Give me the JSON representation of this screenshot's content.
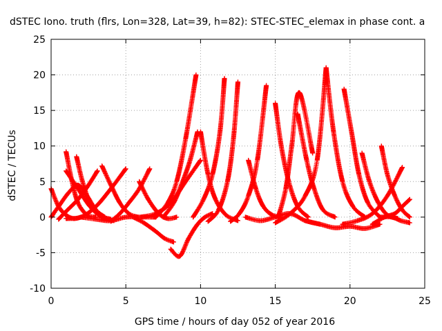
{
  "chart_data": {
    "type": "scatter",
    "title": "dSTEC Iono. truth (flrs, Lon=328, Lat=39, h=82): STEC-STEC_elemax in phase cont. a",
    "xlabel": "GPS time / hours of day 052 of year 2016",
    "ylabel": "dSTEC  / TECUs",
    "xlim": [
      0,
      25
    ],
    "ylim": [
      -10,
      25
    ],
    "xticks": [
      0,
      5,
      10,
      15,
      20,
      25
    ],
    "yticks": [
      -10,
      -5,
      0,
      5,
      10,
      15,
      20,
      25
    ],
    "grid": true,
    "marker": "+",
    "color": "#ff0000",
    "series": [
      {
        "x": [
          0.0,
          0.5,
          1.0,
          1.5,
          2.0
        ],
        "y": [
          4.0,
          1.5,
          0.3,
          -0.2,
          0.0
        ]
      },
      {
        "x": [
          0.0,
          0.5,
          1.2,
          1.8,
          2.4,
          3.0,
          3.6
        ],
        "y": [
          0.0,
          1.5,
          3.5,
          4.5,
          3.0,
          1.0,
          0.0
        ]
      },
      {
        "x": [
          1.0,
          1.4,
          1.8,
          2.4,
          3.0
        ],
        "y": [
          9.2,
          5.0,
          2.0,
          0.3,
          0.0
        ]
      },
      {
        "x": [
          1.7,
          2.1,
          2.6,
          3.2,
          4.0
        ],
        "y": [
          8.5,
          5.0,
          2.0,
          0.3,
          -0.3
        ]
      },
      {
        "x": [
          0.5,
          1.0,
          1.8,
          2.5,
          3.1
        ],
        "y": [
          -0.3,
          0.8,
          2.5,
          4.5,
          6.5
        ]
      },
      {
        "x": [
          1.0,
          1.8,
          2.6,
          3.4,
          4.2
        ],
        "y": [
          6.5,
          4.0,
          1.5,
          0.0,
          -0.5
        ]
      },
      {
        "x": [
          1.0,
          2.0,
          3.0,
          4.0,
          5.0
        ],
        "y": [
          -0.2,
          0.0,
          1.5,
          4.0,
          6.8
        ]
      },
      {
        "x": [
          3.4,
          4.0,
          4.6,
          5.2,
          5.8
        ],
        "y": [
          7.2,
          4.5,
          2.0,
          0.5,
          0.0
        ]
      },
      {
        "x": [
          4.0,
          4.6,
          5.2,
          5.9,
          6.6
        ],
        "y": [
          -0.6,
          0.5,
          2.0,
          4.0,
          6.8
        ]
      },
      {
        "x": [
          5.9,
          6.5,
          7.2,
          7.8,
          8.4
        ],
        "y": [
          5.0,
          2.5,
          0.5,
          -0.2,
          0.0
        ]
      },
      {
        "x": [
          2.0,
          3.0,
          4.0,
          5.0,
          6.0,
          7.0
        ],
        "y": [
          0.0,
          -0.3,
          -0.5,
          0.0,
          0.0,
          0.0
        ]
      },
      {
        "x": [
          5.5,
          6.2,
          7.0,
          7.6,
          8.2
        ],
        "y": [
          0.0,
          -0.8,
          -2.0,
          -3.0,
          -3.5
        ]
      },
      {
        "x": [
          6.0,
          7.0,
          8.0,
          9.0,
          10.0
        ],
        "y": [
          0.0,
          0.5,
          2.0,
          5.0,
          8.0
        ]
      },
      {
        "x": [
          7.0,
          7.8,
          8.4,
          9.0,
          9.7
        ],
        "y": [
          0.0,
          2.0,
          5.0,
          11.0,
          20.0
        ]
      },
      {
        "x": [
          8.0,
          8.6,
          9.2,
          9.8,
          10.3,
          10.8
        ],
        "y": [
          -4.5,
          -5.5,
          -3.0,
          -1.0,
          0.0,
          0.5
        ]
      },
      {
        "x": [
          7.5,
          8.2,
          8.8,
          9.3,
          9.8
        ],
        "y": [
          0.0,
          2.0,
          5.0,
          8.0,
          12.0
        ]
      },
      {
        "x": [
          10.0,
          10.5,
          11.0,
          11.7,
          12.5
        ],
        "y": [
          12.0,
          6.0,
          2.5,
          0.3,
          -0.5
        ]
      },
      {
        "x": [
          9.5,
          10.2,
          10.8,
          11.3,
          11.6
        ],
        "y": [
          0.0,
          2.5,
          6.0,
          12.0,
          19.5
        ]
      },
      {
        "x": [
          10.5,
          11.2,
          11.8,
          12.2,
          12.5
        ],
        "y": [
          -0.6,
          1.0,
          5.0,
          11.0,
          19.0
        ]
      },
      {
        "x": [
          12.0,
          12.6,
          13.2,
          13.8,
          14.4
        ],
        "y": [
          -0.6,
          0.5,
          3.0,
          8.0,
          18.5
        ]
      },
      {
        "x": [
          13.2,
          13.7,
          14.2,
          14.8,
          15.4
        ],
        "y": [
          8.0,
          4.0,
          1.5,
          0.3,
          0.0
        ]
      },
      {
        "x": [
          15.0,
          15.4,
          15.9,
          16.5,
          17.2
        ],
        "y": [
          16.0,
          10.0,
          5.0,
          1.5,
          0.0
        ]
      },
      {
        "x": [
          15.2,
          15.7,
          16.1,
          16.6,
          17.5
        ],
        "y": [
          0.0,
          4.0,
          10.0,
          17.5,
          9.0
        ]
      },
      {
        "x": [
          16.5,
          17.1,
          17.6,
          18.2,
          19.0
        ],
        "y": [
          14.5,
          8.0,
          4.0,
          1.0,
          0.0
        ]
      },
      {
        "x": [
          15.0,
          16.0,
          17.0,
          17.8,
          18.4
        ],
        "y": [
          -0.8,
          0.5,
          3.0,
          8.0,
          21.0
        ]
      },
      {
        "x": [
          18.4,
          18.9,
          19.5,
          20.2,
          21.0
        ],
        "y": [
          21.0,
          12.0,
          5.0,
          1.5,
          0.0
        ]
      },
      {
        "x": [
          19.6,
          20.1,
          20.6,
          21.2,
          22.0
        ],
        "y": [
          18.0,
          12.0,
          6.0,
          2.0,
          0.0
        ]
      },
      {
        "x": [
          20.8,
          21.3,
          21.9,
          22.5,
          23.2
        ],
        "y": [
          9.0,
          5.0,
          2.0,
          0.3,
          -0.2
        ]
      },
      {
        "x": [
          22.1,
          22.5,
          23.0,
          23.5,
          24.0
        ],
        "y": [
          10.0,
          6.0,
          3.0,
          1.0,
          0.0
        ]
      },
      {
        "x": [
          19.5,
          20.5,
          21.5,
          22.5,
          23.5
        ],
        "y": [
          -1.0,
          -0.5,
          0.5,
          3.0,
          7.0
        ]
      },
      {
        "x": [
          17.0,
          18.0,
          19.0,
          20.0,
          21.0,
          22.0
        ],
        "y": [
          -0.5,
          -1.0,
          -1.5,
          -1.3,
          -1.6,
          -1.0
        ]
      },
      {
        "x": [
          21.5,
          22.3,
          23.0,
          23.5,
          24.0
        ],
        "y": [
          -1.0,
          0.0,
          0.5,
          1.5,
          2.5
        ]
      },
      {
        "x": [
          13.0,
          14.0,
          15.0,
          16.0,
          17.0,
          18.0
        ],
        "y": [
          0.0,
          -0.5,
          0.0,
          0.5,
          -0.5,
          -1.0
        ]
      },
      {
        "x": [
          22.0,
          22.8,
          23.4,
          24.0
        ],
        "y": [
          0.0,
          0.0,
          -0.5,
          -0.8
        ]
      }
    ]
  }
}
